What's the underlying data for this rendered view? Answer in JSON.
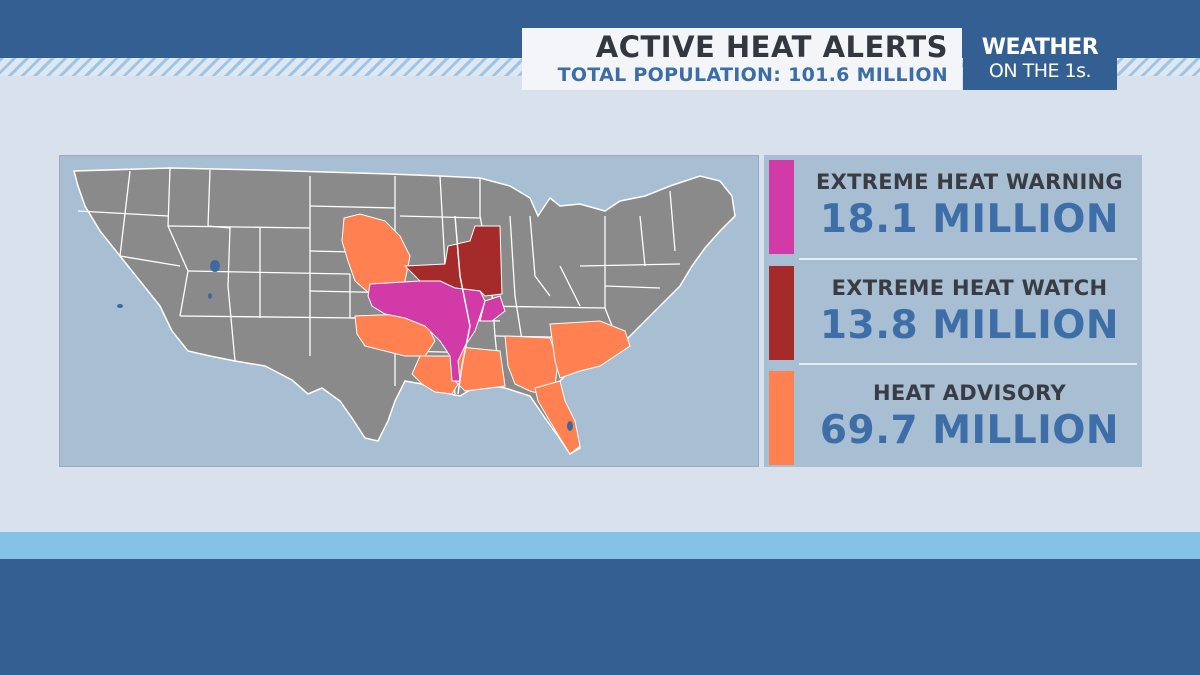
{
  "header": {
    "title": "ACTIVE HEAT ALERTS",
    "subtitle": "TOTAL POPULATION: 101.6 MILLION"
  },
  "logo": {
    "line1": "WEATHER",
    "line2": "ON THE 1s."
  },
  "map": {
    "region": "Contiguous United States",
    "background_color": "#a8bed2",
    "land_color": "#8a8a8a",
    "border_color": "#ffffff"
  },
  "legend": [
    {
      "label": "EXTREME HEAT WARNING",
      "value": "18.1 MILLION",
      "color": "#d23aa8"
    },
    {
      "label": "EXTREME HEAT WATCH",
      "value": "13.8 MILLION",
      "color": "#a52a2a"
    },
    {
      "label": "HEAT ADVISORY",
      "value": "69.7 MILLION",
      "color": "#ff8050"
    }
  ]
}
